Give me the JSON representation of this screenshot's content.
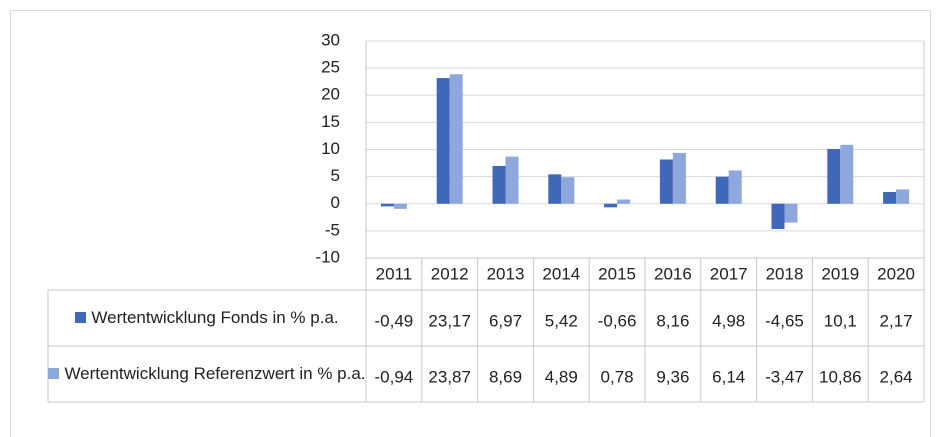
{
  "chart_data": {
    "type": "bar",
    "categories": [
      "2011",
      "2012",
      "2013",
      "2014",
      "2015",
      "2016",
      "2017",
      "2018",
      "2019",
      "2020"
    ],
    "series": [
      {
        "name": "Wertentwicklung Fonds in % p.a.",
        "color": "#4068b8",
        "values": [
          -0.49,
          23.17,
          6.97,
          5.42,
          -0.66,
          8.16,
          4.98,
          -4.65,
          10.1,
          2.17
        ],
        "value_labels": [
          "-0,49",
          "23,17",
          "6,97",
          "5,42",
          "-0,66",
          "8,16",
          "4,98",
          "-4,65",
          "10,1",
          "2,17"
        ]
      },
      {
        "name": "Wertentwicklung Referenzwert in % p.a.",
        "color": "#8ea7dc",
        "values": [
          -0.94,
          23.87,
          8.69,
          4.89,
          0.78,
          9.36,
          6.14,
          -3.47,
          10.86,
          2.64
        ],
        "value_labels": [
          "-0,94",
          "23,87",
          "8,69",
          "4,89",
          "0,78",
          "9,36",
          "6,14",
          "-3,47",
          "10,86",
          "2,64"
        ]
      }
    ],
    "ylim": [
      -10,
      30
    ],
    "yticks": [
      -10,
      -5,
      0,
      5,
      10,
      15,
      20,
      25,
      30
    ],
    "grid": true
  }
}
